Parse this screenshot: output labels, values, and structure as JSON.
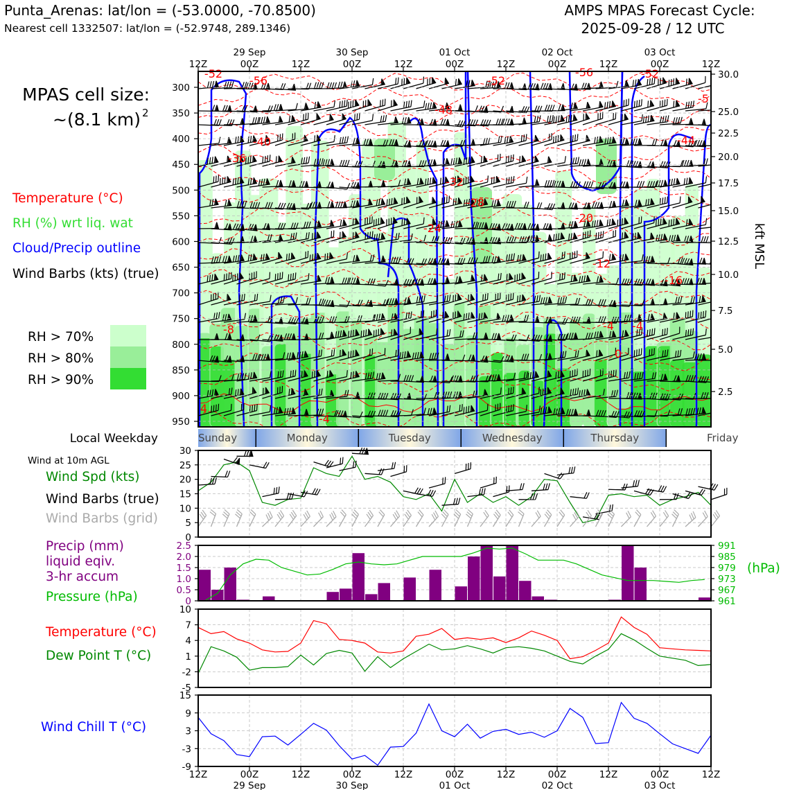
{
  "header": {
    "location": "Punta_Arenas: lat/lon = (-53.0000, -70.8500)",
    "nearest": "Nearest cell 1332507: lat/lon = (-52.9748, 289.1346)",
    "forecast_title": "AMPS MPAS Forecast Cycle:",
    "forecast_cycle": "2025-09-28 / 12 UTC"
  },
  "cell_size": {
    "label": "MPAS cell size:",
    "value": "~(8.1 km)",
    "exponent": "2"
  },
  "legend": {
    "temperature": "Temperature (°C)",
    "rh": "RH (%) wrt liq. wat",
    "cloud": "Cloud/Precip outline",
    "wind": "Wind Barbs (kts) (true)",
    "rh70": "RH > 70%",
    "rh80": "RH > 80%",
    "rh90": "RH > 90%"
  },
  "colors": {
    "temperature": "#ff0000",
    "rh_green": "#33dd33",
    "cloud_blue": "#0000ff",
    "rh70": "#ccffcc",
    "rh80": "#99ee99",
    "rh90": "#33dd33",
    "precip": "#800080",
    "pressure": "#00bb00",
    "wind_chill": "#0000ff",
    "dewpoint": "#008800",
    "wind_speed": "#008800"
  },
  "time_axis": {
    "ticks": [
      "12Z",
      "00Z",
      "12Z",
      "00Z",
      "12Z",
      "00Z",
      "12Z",
      "00Z",
      "12Z",
      "00Z",
      "12Z"
    ],
    "dates": [
      "29 Sep",
      "30 Sep",
      "01 Oct",
      "02 Oct",
      "03 Oct"
    ]
  },
  "weekday": {
    "label": "Local Weekday",
    "days": [
      "Sunday",
      "Monday",
      "Tuesday",
      "Wednesday",
      "Thursday",
      "Friday"
    ]
  },
  "top_panel": {
    "pressure_ticks": [
      "300",
      "350",
      "400",
      "450",
      "500",
      "550",
      "600",
      "650",
      "700",
      "750",
      "800",
      "850",
      "900",
      "950"
    ],
    "kft_ticks": [
      "30.0",
      "25.0",
      "22.5",
      "20.0",
      "17.5",
      "15.0",
      "12.5",
      "10.0",
      "7.5",
      "5.0",
      "2.5"
    ],
    "right_label": "kft MSL",
    "temp_labels": [
      "-52",
      "-56",
      "-52",
      "-56",
      "-52",
      "-5",
      "-48",
      "-40",
      "-36",
      "-44",
      "-32",
      "-28",
      "-24",
      "-20",
      "-12",
      "-16",
      "-8",
      "-4",
      "-4",
      "0",
      "4",
      "-4"
    ]
  },
  "panel_wind": {
    "title": "Wind at 10m AGL",
    "speed_label": "Wind Spd (kts)",
    "barbs_true": "Wind Barbs (true)",
    "barbs_grid": "Wind Barbs (grid)",
    "yticks": [
      "30",
      "25",
      "20",
      "15",
      "10",
      "5",
      "0"
    ]
  },
  "panel_precip": {
    "precip_l1": "Precip (mm)",
    "precip_l2": "liquid eqiv.",
    "precip_l3": "3-hr accum",
    "pressure_label": "Pressure (hPa)",
    "yticks": [
      "2.5",
      "2.0",
      "1.5",
      "1.0",
      "0.5",
      "0"
    ],
    "rticks": [
      "991",
      "985",
      "979",
      "973",
      "967",
      "961"
    ],
    "right_unit": "(hPa)"
  },
  "panel_temp": {
    "temp_label": "Temperature (°C)",
    "dew_label": "Dew Point T (°C)",
    "yticks": [
      "10",
      "7",
      "4",
      "1",
      "-2",
      "-5"
    ]
  },
  "panel_chill": {
    "label": "Wind Chill T (°C)",
    "yticks": [
      "15",
      "9",
      "3",
      "-3",
      "-9"
    ]
  },
  "chart_data": [
    {
      "type": "line",
      "name": "wind_10m",
      "x_hours": [
        0,
        3,
        6,
        9,
        12,
        15,
        18,
        21,
        24,
        27,
        30,
        33,
        36,
        39,
        42,
        45,
        48,
        51,
        54,
        57,
        60,
        63,
        66,
        69,
        72,
        75,
        78,
        81,
        84,
        87,
        90,
        93,
        96,
        99,
        102,
        105,
        108,
        111,
        114,
        117,
        120
      ],
      "series": [
        {
          "name": "Wind Spd (kts)",
          "values": [
            16,
            19,
            25,
            26,
            23,
            12,
            11,
            13,
            13.5,
            24,
            22,
            21,
            28,
            20,
            21,
            19,
            14,
            13,
            15,
            9,
            20,
            12,
            15,
            12,
            14,
            11,
            14,
            20,
            19.5,
            12,
            5,
            6,
            14.5,
            15,
            14,
            14.5,
            11,
            13,
            14,
            15.5,
            11
          ]
        }
      ],
      "ylim": [
        0,
        30
      ]
    },
    {
      "type": "bar",
      "name": "precip_3hr",
      "x_hours": [
        1.5,
        4.5,
        7.5,
        10.5,
        13.5,
        16.5,
        19.5,
        22.5,
        25.5,
        28.5,
        31.5,
        34.5,
        37.5,
        40.5,
        43.5,
        46.5,
        49.5,
        52.5,
        55.5,
        58.5,
        61.5,
        64.5,
        67.5,
        70.5,
        73.5,
        76.5,
        79.5,
        82.5,
        85.5,
        88.5,
        91.5,
        94.5,
        97.5,
        100.5,
        103.5,
        106.5,
        109.5,
        112.5,
        115.5,
        118.5
      ],
      "series": [
        {
          "name": "Precip (mm)",
          "values": [
            1.4,
            0.5,
            1.5,
            0.05,
            0,
            0.2,
            0,
            0,
            0,
            0,
            0.4,
            0.55,
            2.15,
            0.3,
            0.8,
            0,
            1.05,
            0,
            1.4,
            0,
            0.65,
            2.0,
            2.5,
            1.1,
            2.5,
            0.9,
            0.2,
            0.05,
            0,
            0,
            0,
            0,
            0.05,
            2.5,
            1.5,
            0,
            0,
            0,
            0,
            0.15
          ]
        },
        {
          "name": "Pressure (hPa)",
          "values": [
            961,
            965,
            975,
            981,
            983.5,
            983,
            979,
            977,
            975,
            975.5,
            978,
            981,
            982,
            981,
            980.5,
            981,
            983,
            985,
            985,
            985,
            985,
            987,
            989.5,
            989,
            989.5,
            986.5,
            983,
            983,
            983,
            981,
            978,
            975,
            973.5,
            972,
            972,
            972,
            971.5,
            971,
            972,
            972.5
          ]
        }
      ],
      "ylim": [
        0,
        2.5
      ],
      "y2lim": [
        961,
        991
      ]
    },
    {
      "type": "line",
      "name": "temperature_dewpoint",
      "x_hours": [
        0,
        3,
        6,
        9,
        12,
        15,
        18,
        21,
        24,
        27,
        30,
        33,
        36,
        39,
        42,
        45,
        48,
        51,
        54,
        57,
        60,
        63,
        66,
        69,
        72,
        75,
        78,
        81,
        84,
        87,
        90,
        93,
        96,
        99,
        102,
        105,
        108,
        111,
        114,
        117,
        120
      ],
      "series": [
        {
          "name": "Temperature (°C)",
          "values": [
            6.5,
            5.3,
            5.7,
            4.3,
            3.5,
            2.2,
            1.8,
            1.9,
            3.5,
            7.8,
            7.2,
            4.2,
            4,
            3.5,
            1.8,
            1.6,
            2,
            4.8,
            5.2,
            6.3,
            4.2,
            4.5,
            4.2,
            4.5,
            3.6,
            4.5,
            5.8,
            5,
            4,
            0.5,
            0.9,
            2.1,
            3.5,
            8.5,
            6.5,
            5.2,
            2.6,
            2.4,
            2.2,
            2.1,
            2
          ]
        },
        {
          "name": "Dew Point T (°C)",
          "values": [
            -2.3,
            2.8,
            2,
            0.8,
            -1.7,
            -1.2,
            -1.2,
            -1,
            1.2,
            -0.7,
            1.5,
            2.1,
            1.6,
            -1.9,
            0.9,
            -1.2,
            0.5,
            1.9,
            3.3,
            2.2,
            2.4,
            3,
            2.4,
            1.6,
            2.6,
            2.8,
            2.5,
            2,
            1,
            0,
            -0.5,
            1,
            2.3,
            5.3,
            4.1,
            2.5,
            1,
            0.6,
            0.2,
            -0.8,
            -0.6
          ]
        }
      ],
      "ylim": [
        -5,
        10
      ]
    },
    {
      "type": "line",
      "name": "wind_chill",
      "x_hours": [
        0,
        3,
        6,
        9,
        12,
        15,
        18,
        21,
        24,
        27,
        30,
        33,
        36,
        39,
        42,
        45,
        48,
        51,
        54,
        57,
        60,
        63,
        66,
        69,
        72,
        75,
        78,
        81,
        84,
        87,
        90,
        93,
        96,
        99,
        102,
        105,
        108,
        111,
        114,
        117,
        120
      ],
      "series": [
        {
          "name": "Wind Chill T (°C)",
          "values": [
            7.5,
            2,
            -0.3,
            -5,
            -5.7,
            1,
            1.2,
            -1.8,
            1.8,
            5.5,
            3.2,
            -2,
            -6.5,
            -5.3,
            -8.6,
            -2.5,
            -2.3,
            2.2,
            12,
            3,
            1,
            5.2,
            0.5,
            2.8,
            3.5,
            1.8,
            2.5,
            0.8,
            3,
            10.5,
            7.5,
            -1.3,
            -1,
            12.5,
            7.2,
            5.5,
            2,
            -1.4,
            -3,
            -4.6,
            1.5
          ]
        }
      ],
      "ylim": [
        -9,
        15
      ]
    }
  ]
}
